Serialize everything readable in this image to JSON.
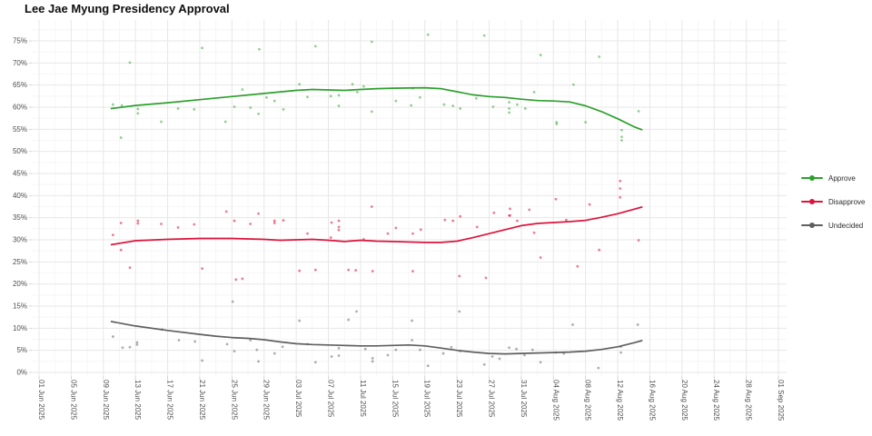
{
  "chart_data": {
    "type": "scatter",
    "title": "Lee Jae Myung Presidency Approval",
    "subtitle": "",
    "grid": true,
    "legend_position": "right",
    "y_axis": {
      "tick_values": [
        0,
        5,
        10,
        15,
        20,
        25,
        30,
        35,
        40,
        45,
        50,
        55,
        60,
        65,
        70,
        75
      ],
      "tick_suffix": "%",
      "range": [
        0,
        78
      ]
    },
    "x_axis": {
      "unit": "days since 01 Jun 2025",
      "tick_days": [
        0,
        4,
        8,
        12,
        16,
        20,
        24,
        28,
        32,
        36,
        40,
        44,
        48,
        52,
        56,
        60,
        64,
        68,
        72,
        76,
        80,
        84,
        88,
        92
      ],
      "tick_labels": [
        "01 Jun 2025",
        "05 Jun 2025",
        "09 Jun 2025",
        "13 Jun 2025",
        "17 Jun 2025",
        "21 Jun 2025",
        "25 Jun 2025",
        "29 Jun 2025",
        "03 Jul 2025",
        "07 Jul 2025",
        "11 Jul 2025",
        "15 Jul 2025",
        "19 Jul 2025",
        "23 Jul 2025",
        "27 Jul 2025",
        "31 Jul 2025",
        "04 Aug 2025",
        "08 Aug 2025",
        "12 Aug 2025",
        "16 Aug 2025",
        "20 Aug 2025",
        "24 Aug 2025",
        "28 Aug 2025",
        "01 Sep 2025"
      ],
      "range_days": [
        -1,
        93
      ]
    },
    "series": [
      {
        "name": "Approve",
        "color": "#2ca02c",
        "point_opacity": 0.5,
        "trend": [
          [
            9,
            59.7
          ],
          [
            12,
            60.4
          ],
          [
            16,
            61.0
          ],
          [
            20,
            61.7
          ],
          [
            24,
            62.4
          ],
          [
            28,
            63.1
          ],
          [
            32,
            63.8
          ],
          [
            34,
            64.0
          ],
          [
            36,
            63.9
          ],
          [
            38,
            63.8
          ],
          [
            40,
            64.0
          ],
          [
            42,
            64.2
          ],
          [
            44,
            64.3
          ],
          [
            48,
            64.4
          ],
          [
            50,
            64.2
          ],
          [
            52,
            63.5
          ],
          [
            54,
            62.8
          ],
          [
            56,
            62.4
          ],
          [
            58,
            62.2
          ],
          [
            60,
            61.8
          ],
          [
            62,
            61.5
          ],
          [
            64,
            61.4
          ],
          [
            66,
            61.2
          ],
          [
            68,
            60.3
          ],
          [
            70,
            59.0
          ],
          [
            72,
            57.4
          ],
          [
            74,
            55.6
          ],
          [
            75,
            54.9
          ]
        ],
        "points": [
          [
            9.2,
            60.6
          ],
          [
            10.3,
            60.4
          ],
          [
            10.2,
            53.1
          ],
          [
            11.3,
            70.1
          ],
          [
            12.3,
            59.6
          ],
          [
            12.3,
            58.6
          ],
          [
            15.2,
            56.7
          ],
          [
            17.3,
            59.7
          ],
          [
            19.3,
            59.5
          ],
          [
            20.3,
            73.4
          ],
          [
            23.2,
            56.7
          ],
          [
            24.3,
            60.1
          ],
          [
            25.3,
            64.0
          ],
          [
            26.3,
            59.9
          ],
          [
            27.3,
            58.5
          ],
          [
            27.4,
            73.1
          ],
          [
            28.3,
            62.2
          ],
          [
            29.3,
            61.4
          ],
          [
            30.4,
            59.5
          ],
          [
            32.4,
            65.2
          ],
          [
            33.4,
            62.3
          ],
          [
            34.4,
            73.8
          ],
          [
            36.3,
            62.5
          ],
          [
            37.3,
            62.7
          ],
          [
            37.3,
            60.3
          ],
          [
            39.0,
            65.2
          ],
          [
            39.6,
            63.4
          ],
          [
            40.4,
            64.7
          ],
          [
            41.4,
            74.8
          ],
          [
            41.4,
            59.0
          ],
          [
            44.4,
            61.4
          ],
          [
            46.5,
            64.3
          ],
          [
            46.3,
            60.4
          ],
          [
            47.4,
            62.2
          ],
          [
            48.4,
            76.4
          ],
          [
            50.4,
            60.6
          ],
          [
            51.5,
            60.3
          ],
          [
            52.4,
            59.7
          ],
          [
            54.4,
            62.0
          ],
          [
            55.4,
            76.2
          ],
          [
            56.5,
            60.1
          ],
          [
            58.5,
            61.1
          ],
          [
            58.5,
            59.7
          ],
          [
            58.5,
            58.8
          ],
          [
            59.5,
            60.6
          ],
          [
            60.5,
            59.7
          ],
          [
            61.6,
            63.4
          ],
          [
            62.4,
            71.8
          ],
          [
            64.4,
            56.6
          ],
          [
            64.4,
            56.2
          ],
          [
            66.5,
            65.1
          ],
          [
            68.0,
            56.6
          ],
          [
            69.7,
            71.4
          ],
          [
            72.5,
            54.8
          ],
          [
            72.5,
            53.3
          ],
          [
            72.5,
            52.5
          ],
          [
            74.6,
            59.1
          ]
        ]
      },
      {
        "name": "Disapprove",
        "color": "#dc143c",
        "point_opacity": 0.55,
        "trend": [
          [
            9,
            28.9
          ],
          [
            12,
            29.8
          ],
          [
            16,
            30.1
          ],
          [
            20,
            30.3
          ],
          [
            24,
            30.3
          ],
          [
            28,
            30.1
          ],
          [
            30,
            29.9
          ],
          [
            32,
            30.0
          ],
          [
            34,
            30.1
          ],
          [
            36,
            29.9
          ],
          [
            38,
            29.6
          ],
          [
            40,
            29.9
          ],
          [
            42,
            29.7
          ],
          [
            44,
            29.6
          ],
          [
            48,
            29.4
          ],
          [
            50,
            29.4
          ],
          [
            52,
            29.7
          ],
          [
            54,
            30.5
          ],
          [
            56,
            31.4
          ],
          [
            58,
            32.3
          ],
          [
            60,
            33.2
          ],
          [
            62,
            33.7
          ],
          [
            64,
            33.9
          ],
          [
            66,
            34.1
          ],
          [
            68,
            34.4
          ],
          [
            70,
            35.1
          ],
          [
            72,
            35.9
          ],
          [
            74,
            36.9
          ],
          [
            75,
            37.4
          ]
        ],
        "points": [
          [
            9.2,
            31.1
          ],
          [
            10.2,
            33.8
          ],
          [
            10.2,
            27.7
          ],
          [
            11.3,
            23.7
          ],
          [
            12.3,
            34.3
          ],
          [
            12.3,
            33.7
          ],
          [
            15.2,
            33.6
          ],
          [
            17.3,
            32.8
          ],
          [
            19.3,
            33.5
          ],
          [
            20.3,
            23.5
          ],
          [
            23.3,
            36.4
          ],
          [
            24.3,
            34.3
          ],
          [
            24.5,
            21.0
          ],
          [
            25.3,
            21.2
          ],
          [
            26.3,
            33.6
          ],
          [
            27.3,
            35.9
          ],
          [
            29.3,
            34.3
          ],
          [
            29.3,
            33.8
          ],
          [
            30.4,
            34.4
          ],
          [
            32.4,
            23.0
          ],
          [
            33.4,
            31.4
          ],
          [
            34.4,
            23.2
          ],
          [
            36.3,
            30.5
          ],
          [
            36.4,
            33.9
          ],
          [
            37.3,
            34.3
          ],
          [
            37.3,
            32.9
          ],
          [
            37.3,
            32.2
          ],
          [
            38.5,
            23.2
          ],
          [
            39.4,
            23.1
          ],
          [
            40.4,
            30.1
          ],
          [
            41.4,
            37.5
          ],
          [
            41.5,
            22.9
          ],
          [
            43.4,
            31.4
          ],
          [
            44.4,
            32.7
          ],
          [
            46.5,
            31.4
          ],
          [
            46.5,
            22.9
          ],
          [
            47.5,
            32.3
          ],
          [
            50.5,
            34.5
          ],
          [
            51.5,
            34.3
          ],
          [
            52.4,
            35.3
          ],
          [
            52.3,
            21.8
          ],
          [
            54.5,
            32.9
          ],
          [
            55.6,
            21.4
          ],
          [
            56.6,
            36.1
          ],
          [
            58.5,
            35.5
          ],
          [
            58.6,
            37.0
          ],
          [
            58.6,
            35.5
          ],
          [
            59.5,
            34.3
          ],
          [
            61.0,
            36.8
          ],
          [
            61.6,
            31.6
          ],
          [
            62.4,
            26.0
          ],
          [
            64.3,
            39.2
          ],
          [
            65.6,
            34.5
          ],
          [
            67.0,
            24.0
          ],
          [
            68.5,
            38.0
          ],
          [
            69.7,
            27.7
          ],
          [
            72.3,
            43.3
          ],
          [
            72.3,
            41.6
          ],
          [
            72.3,
            39.6
          ],
          [
            74.6,
            29.9
          ]
        ]
      },
      {
        "name": "Undecided",
        "color": "#5f5f5f",
        "point_opacity": 0.5,
        "trend": [
          [
            9,
            11.5
          ],
          [
            12,
            10.5
          ],
          [
            16,
            9.5
          ],
          [
            20,
            8.6
          ],
          [
            22,
            8.2
          ],
          [
            24,
            7.9
          ],
          [
            26,
            7.7
          ],
          [
            28,
            7.4
          ],
          [
            30,
            6.9
          ],
          [
            32,
            6.5
          ],
          [
            34,
            6.3
          ],
          [
            36,
            6.2
          ],
          [
            38,
            6.1
          ],
          [
            40,
            6.0
          ],
          [
            42,
            6.0
          ],
          [
            44,
            6.1
          ],
          [
            46,
            6.2
          ],
          [
            48,
            6.0
          ],
          [
            50,
            5.5
          ],
          [
            52,
            5.0
          ],
          [
            54,
            4.6
          ],
          [
            56,
            4.3
          ],
          [
            58,
            4.2
          ],
          [
            60,
            4.3
          ],
          [
            62,
            4.4
          ],
          [
            64,
            4.5
          ],
          [
            66,
            4.6
          ],
          [
            68,
            4.8
          ],
          [
            70,
            5.2
          ],
          [
            72,
            5.8
          ],
          [
            74,
            6.7
          ],
          [
            75,
            7.2
          ]
        ],
        "points": [
          [
            9.2,
            8.1
          ],
          [
            10.4,
            5.6
          ],
          [
            11.3,
            5.7
          ],
          [
            12.2,
            6.8
          ],
          [
            12.2,
            6.3
          ],
          [
            15.3,
            9.7
          ],
          [
            17.4,
            7.3
          ],
          [
            19.4,
            7.0
          ],
          [
            20.3,
            2.7
          ],
          [
            23.4,
            6.4
          ],
          [
            24.1,
            16.0
          ],
          [
            24.3,
            4.8
          ],
          [
            26.3,
            7.3
          ],
          [
            27.1,
            5.1
          ],
          [
            27.3,
            2.5
          ],
          [
            29.3,
            4.3
          ],
          [
            30.3,
            5.8
          ],
          [
            32.4,
            11.7
          ],
          [
            33.4,
            6.4
          ],
          [
            34.4,
            2.3
          ],
          [
            36.4,
            3.6
          ],
          [
            37.3,
            5.5
          ],
          [
            37.3,
            3.8
          ],
          [
            38.5,
            11.9
          ],
          [
            39.5,
            13.8
          ],
          [
            40.6,
            5.3
          ],
          [
            41.5,
            3.2
          ],
          [
            41.5,
            2.5
          ],
          [
            43.4,
            3.9
          ],
          [
            44.4,
            5.1
          ],
          [
            46.4,
            11.7
          ],
          [
            46.4,
            7.3
          ],
          [
            47.4,
            5.1
          ],
          [
            48.4,
            1.5
          ],
          [
            50.3,
            4.3
          ],
          [
            51.3,
            5.7
          ],
          [
            52.3,
            13.8
          ],
          [
            52.4,
            4.8
          ],
          [
            55.4,
            1.8
          ],
          [
            56.4,
            3.6
          ],
          [
            57.3,
            3.1
          ],
          [
            58.5,
            5.6
          ],
          [
            59.4,
            5.3
          ],
          [
            60.4,
            3.9
          ],
          [
            61.4,
            5.1
          ],
          [
            62.4,
            2.3
          ],
          [
            64.3,
            4.5
          ],
          [
            65.3,
            4.3
          ],
          [
            66.4,
            10.8
          ],
          [
            69.6,
            1.0
          ],
          [
            72.4,
            5.8
          ],
          [
            72.4,
            4.5
          ],
          [
            74.5,
            10.8
          ]
        ]
      }
    ],
    "colors": {
      "grid_major": "#e7e7e7",
      "grid_minor": "#f4f4f4",
      "tick_text": "#4d4d4d",
      "tick_mark": "#333333"
    }
  }
}
